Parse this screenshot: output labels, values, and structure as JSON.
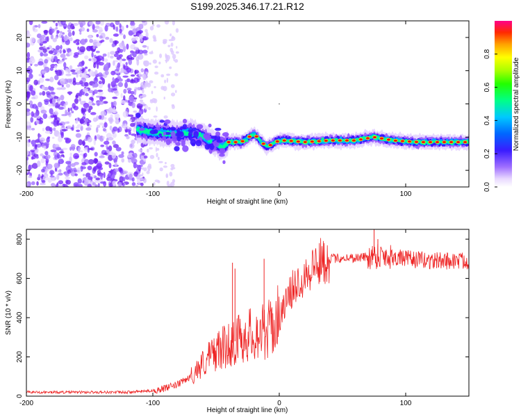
{
  "title": "S199.2025.346.17.21.R12",
  "chart_data": [
    {
      "type": "heatmap",
      "name": "spectrogram",
      "xlabel": "Height of straight line (km)",
      "ylabel": "Frequency (Hz)",
      "xlim": [
        -200,
        150
      ],
      "ylim": [
        -25,
        25
      ],
      "xticks": [
        -200,
        -100,
        0,
        100
      ],
      "xtick_labels": [
        "-200",
        "-100",
        "0",
        "100"
      ],
      "yticks": [
        -20,
        -10,
        0,
        10,
        20
      ],
      "ytick_labels": [
        "-20",
        "-10",
        "0",
        "10",
        "20"
      ],
      "colorbar": {
        "label": "Normalized spectral amplitude",
        "range": [
          0,
          1
        ],
        "ticks": [
          0.0,
          0.2,
          0.4,
          0.6,
          0.8
        ],
        "tick_labels": [
          "0.0",
          "0.2",
          "0.4",
          "0.6",
          "0.8"
        ]
      },
      "signal_track": {
        "description_points_x": [
          -110,
          -100,
          -90,
          -80,
          -70,
          -60,
          -50,
          -45,
          -40,
          -30,
          -20,
          -15,
          -10,
          0,
          5,
          20,
          40,
          60,
          75,
          90,
          110,
          130,
          150
        ],
        "frequency_hz": [
          -8,
          -8.5,
          -9,
          -9,
          -8.5,
          -10,
          -12,
          -13,
          -11.5,
          -11.5,
          -9,
          -11,
          -13,
          -11,
          -11,
          -11.5,
          -11,
          -11,
          -10,
          -11,
          -11.5,
          -11.5,
          -11.5
        ]
      }
    },
    {
      "type": "line",
      "name": "snr",
      "xlabel": "Height of straight line (km)",
      "ylabel": "SNR (10 * v/v)",
      "xlim": [
        -200,
        150
      ],
      "ylim": [
        0,
        850
      ],
      "xticks": [
        -200,
        -100,
        0,
        100
      ],
      "xtick_labels": [
        "-200",
        "-100",
        "0",
        "100"
      ],
      "yticks": [
        0,
        200,
        400,
        600,
        800
      ],
      "ytick_labels": [
        "0",
        "200",
        "400",
        "600",
        "800"
      ],
      "color": "#ee2222",
      "trend": {
        "x": [
          -200,
          -120,
          -100,
          -90,
          -80,
          -70,
          -60,
          -50,
          -40,
          -35,
          -30,
          -20,
          -10,
          -5,
          0,
          5,
          10,
          20,
          30,
          40,
          50,
          60,
          70,
          80,
          90,
          100,
          120,
          150
        ],
        "y": [
          20,
          20,
          28,
          40,
          60,
          100,
          170,
          230,
          260,
          280,
          300,
          320,
          330,
          360,
          400,
          470,
          540,
          620,
          680,
          700,
          705,
          705,
          710,
          720,
          710,
          700,
          690,
          690
        ]
      },
      "spikes": [
        {
          "x": -37,
          "y": 680
        },
        {
          "x": -35,
          "y": 650
        },
        {
          "x": -12,
          "y": 700
        },
        {
          "x": 75,
          "y": 850
        },
        {
          "x": 78,
          "y": 800
        }
      ]
    }
  ]
}
